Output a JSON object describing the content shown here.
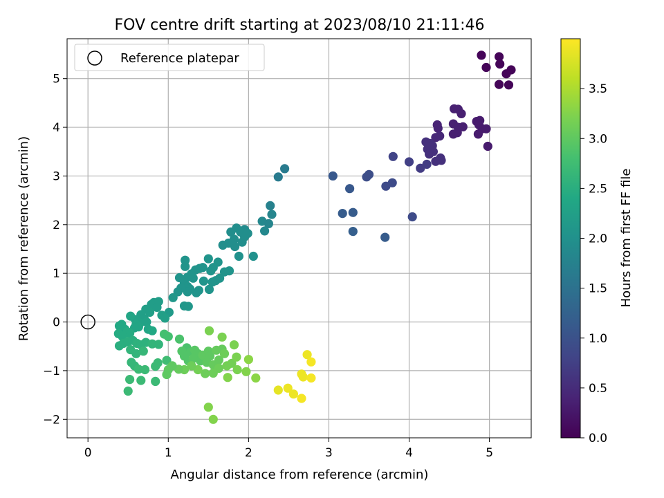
{
  "chart_data": {
    "type": "scatter",
    "title": "FOV centre drift starting at 2023/08/10 21:11:46",
    "xlabel": "Angular distance from reference (arcmin)",
    "ylabel": "Rotation from reference (arcmin)",
    "xlim": [
      -0.26,
      5.52
    ],
    "ylim": [
      -2.38,
      5.82
    ],
    "xticks": [
      0,
      1,
      2,
      3,
      4,
      5
    ],
    "yticks": [
      -2,
      -1,
      0,
      1,
      2,
      3,
      4,
      5
    ],
    "grid": true,
    "legend": {
      "placement": "top-left",
      "entries": [
        "Reference platepar"
      ]
    },
    "reference_point": {
      "x": 0,
      "y": 0
    },
    "colorbar": {
      "label": "Hours from first FF file",
      "colormap": "viridis",
      "range": [
        0,
        4.0
      ],
      "ticks": [
        0.0,
        0.5,
        1.0,
        1.5,
        2.0,
        2.5,
        3.0,
        3.5
      ]
    },
    "points": [
      [
        4.9,
        5.48,
        0.05
      ],
      [
        5.12,
        5.45,
        0.05
      ],
      [
        5.13,
        5.3,
        0.05
      ],
      [
        4.96,
        5.23,
        0.05
      ],
      [
        5.27,
        5.18,
        0.05
      ],
      [
        5.21,
        5.1,
        0.05
      ],
      [
        5.12,
        4.88,
        0.05
      ],
      [
        5.24,
        4.87,
        0.05
      ],
      [
        4.56,
        4.38,
        0.35
      ],
      [
        4.61,
        4.37,
        0.35
      ],
      [
        4.65,
        4.28,
        0.35
      ],
      [
        4.35,
        4.05,
        0.4
      ],
      [
        4.36,
        3.98,
        0.4
      ],
      [
        4.55,
        4.07,
        0.35
      ],
      [
        4.67,
        4.01,
        0.35
      ],
      [
        4.61,
        4.0,
        0.35
      ],
      [
        4.84,
        4.12,
        0.3
      ],
      [
        4.88,
        4.14,
        0.3
      ],
      [
        4.87,
        4.05,
        0.3
      ],
      [
        4.91,
        3.97,
        0.3
      ],
      [
        4.96,
        3.97,
        0.3
      ],
      [
        4.55,
        3.86,
        0.35
      ],
      [
        4.6,
        3.89,
        0.35
      ],
      [
        4.86,
        3.86,
        0.3
      ],
      [
        4.38,
        3.82,
        0.45
      ],
      [
        4.33,
        3.79,
        0.45
      ],
      [
        4.98,
        3.61,
        0.3
      ],
      [
        4.21,
        3.7,
        0.55
      ],
      [
        4.26,
        3.67,
        0.55
      ],
      [
        4.29,
        3.62,
        0.55
      ],
      [
        4.23,
        3.55,
        0.55
      ],
      [
        4.27,
        3.52,
        0.55
      ],
      [
        4.3,
        3.5,
        0.55
      ],
      [
        4.25,
        3.45,
        0.55
      ],
      [
        4.39,
        3.37,
        0.55
      ],
      [
        4.4,
        3.32,
        0.55
      ],
      [
        4.33,
        3.3,
        0.55
      ],
      [
        4.22,
        3.24,
        0.7
      ],
      [
        4.14,
        3.16,
        0.7
      ],
      [
        4.0,
        3.29,
        0.75
      ],
      [
        3.8,
        3.4,
        0.8
      ],
      [
        3.79,
        2.86,
        0.9
      ],
      [
        3.71,
        2.79,
        0.9
      ],
      [
        3.5,
        3.03,
        0.95
      ],
      [
        3.47,
        2.98,
        0.95
      ],
      [
        3.05,
        3.0,
        1.1
      ],
      [
        3.26,
        2.74,
        1.1
      ],
      [
        3.17,
        2.23,
        1.15
      ],
      [
        3.3,
        2.25,
        1.15
      ],
      [
        3.3,
        1.86,
        1.2
      ],
      [
        3.7,
        1.74,
        1.15
      ],
      [
        4.04,
        2.16,
        0.9
      ],
      [
        2.45,
        3.15,
        1.65
      ],
      [
        2.37,
        2.98,
        1.65
      ],
      [
        2.27,
        2.39,
        1.75
      ],
      [
        2.29,
        2.21,
        1.8
      ],
      [
        2.17,
        2.07,
        1.85
      ],
      [
        2.25,
        2.02,
        1.8
      ],
      [
        2.2,
        1.87,
        1.85
      ],
      [
        1.95,
        1.9,
        1.9
      ],
      [
        1.85,
        1.93,
        1.95
      ],
      [
        1.9,
        1.85,
        1.95
      ],
      [
        1.99,
        1.82,
        1.95
      ],
      [
        1.78,
        1.85,
        1.95
      ],
      [
        1.95,
        1.75,
        1.95
      ],
      [
        1.82,
        1.7,
        1.95
      ],
      [
        1.92,
        1.64,
        1.95
      ],
      [
        1.83,
        1.55,
        1.95
      ],
      [
        1.75,
        1.62,
        1.95
      ],
      [
        1.68,
        1.58,
        1.95
      ],
      [
        2.06,
        1.35,
        2.0
      ],
      [
        1.88,
        1.35,
        2.0
      ],
      [
        1.76,
        1.05,
        2.05
      ],
      [
        1.7,
        1.03,
        2.05
      ],
      [
        1.62,
        1.23,
        2.05
      ],
      [
        1.5,
        1.3,
        2.05
      ],
      [
        1.56,
        1.12,
        2.05
      ],
      [
        1.53,
        1.05,
        2.05
      ],
      [
        1.43,
        1.12,
        2.05
      ],
      [
        1.39,
        1.1,
        2.05
      ],
      [
        1.34,
        1.07,
        2.05
      ],
      [
        1.29,
        0.99,
        2.05
      ],
      [
        1.24,
        0.92,
        2.05
      ],
      [
        1.31,
        0.9,
        2.05
      ],
      [
        1.21,
        1.27,
        2.05
      ],
      [
        1.21,
        1.14,
        2.05
      ],
      [
        1.14,
        0.91,
        2.05
      ],
      [
        1.2,
        0.8,
        2.05
      ],
      [
        1.24,
        0.73,
        2.05
      ],
      [
        1.27,
        0.68,
        2.05
      ],
      [
        1.38,
        0.65,
        2.05
      ],
      [
        1.51,
        0.67,
        2.05
      ],
      [
        1.64,
        0.9,
        2.05
      ],
      [
        1.59,
        0.85,
        2.05
      ],
      [
        1.55,
        0.82,
        2.05
      ],
      [
        1.44,
        0.84,
        2.05
      ],
      [
        1.35,
        0.6,
        2.05
      ],
      [
        1.24,
        0.62,
        2.05
      ],
      [
        1.16,
        0.7,
        2.05
      ],
      [
        1.12,
        0.62,
        2.05
      ],
      [
        1.06,
        0.5,
        2.1
      ],
      [
        1.2,
        0.33,
        2.1
      ],
      [
        1.25,
        0.32,
        2.1
      ],
      [
        1.01,
        0.2,
        2.15
      ],
      [
        0.88,
        0.42,
        2.2
      ],
      [
        0.82,
        0.4,
        2.2
      ],
      [
        0.79,
        0.36,
        2.2
      ],
      [
        0.86,
        0.3,
        2.2
      ],
      [
        0.72,
        0.26,
        2.25
      ],
      [
        0.77,
        0.2,
        2.25
      ],
      [
        0.92,
        0.14,
        2.25
      ],
      [
        0.96,
        0.08,
        2.25
      ],
      [
        0.66,
        0.15,
        2.25
      ],
      [
        0.7,
        0.07,
        2.25
      ],
      [
        0.73,
        0.0,
        2.3
      ],
      [
        0.65,
        -0.02,
        2.3
      ],
      [
        0.59,
        0.05,
        2.3
      ],
      [
        0.53,
        0.12,
        2.35
      ],
      [
        0.6,
        -0.05,
        2.35
      ],
      [
        0.63,
        -0.1,
        2.35
      ],
      [
        0.58,
        -0.12,
        2.35
      ],
      [
        0.75,
        -0.15,
        2.35
      ],
      [
        0.8,
        -0.18,
        2.4
      ],
      [
        0.39,
        -0.08,
        2.4
      ],
      [
        0.42,
        -0.05,
        2.4
      ],
      [
        0.46,
        -0.15,
        2.4
      ],
      [
        0.49,
        -0.2,
        2.45
      ],
      [
        0.52,
        -0.23,
        2.45
      ],
      [
        0.38,
        -0.24,
        2.45
      ],
      [
        0.43,
        -0.3,
        2.45
      ],
      [
        0.44,
        -0.44,
        2.5
      ],
      [
        0.39,
        -0.49,
        2.5
      ],
      [
        0.5,
        -0.4,
        2.5
      ],
      [
        0.56,
        -0.38,
        2.5
      ],
      [
        0.61,
        -0.44,
        2.55
      ],
      [
        0.66,
        -0.47,
        2.55
      ],
      [
        0.72,
        -0.42,
        2.55
      ],
      [
        0.8,
        -0.45,
        2.6
      ],
      [
        0.88,
        -0.46,
        2.6
      ],
      [
        0.53,
        -0.57,
        2.6
      ],
      [
        0.6,
        -0.65,
        2.6
      ],
      [
        0.69,
        -0.6,
        2.65
      ],
      [
        0.54,
        -0.83,
        2.65
      ],
      [
        0.58,
        -0.9,
        2.65
      ],
      [
        0.63,
        -0.97,
        2.7
      ],
      [
        0.71,
        -0.98,
        2.7
      ],
      [
        0.84,
        -0.91,
        2.7
      ],
      [
        0.87,
        -0.84,
        2.7
      ],
      [
        0.98,
        -0.79,
        2.75
      ],
      [
        0.52,
        -1.18,
        2.7
      ],
      [
        0.66,
        -1.2,
        2.7
      ],
      [
        0.84,
        -1.22,
        2.7
      ],
      [
        0.5,
        -1.42,
        2.7
      ],
      [
        0.95,
        -0.25,
        2.8
      ],
      [
        1.0,
        -0.3,
        2.8
      ],
      [
        1.14,
        -0.35,
        2.85
      ],
      [
        1.23,
        -0.53,
        2.85
      ],
      [
        1.28,
        -0.62,
        2.9
      ],
      [
        1.17,
        -0.6,
        2.9
      ],
      [
        1.2,
        -0.7,
        2.9
      ],
      [
        1.25,
        -0.8,
        2.9
      ],
      [
        1.33,
        -0.58,
        2.95
      ],
      [
        1.37,
        -0.65,
        2.95
      ],
      [
        1.31,
        -0.75,
        2.95
      ],
      [
        1.4,
        -0.8,
        2.95
      ],
      [
        1.43,
        -0.68,
        3.0
      ],
      [
        1.5,
        -0.6,
        3.0
      ],
      [
        1.52,
        -0.7,
        3.0
      ],
      [
        1.48,
        -0.83,
        3.0
      ],
      [
        1.56,
        -0.88,
        3.05
      ],
      [
        1.63,
        -0.78,
        3.05
      ],
      [
        1.6,
        -0.58,
        3.05
      ],
      [
        1.67,
        -0.56,
        3.05
      ],
      [
        1.7,
        -0.65,
        3.1
      ],
      [
        1.63,
        -0.95,
        3.1
      ],
      [
        1.56,
        -1.05,
        3.1
      ],
      [
        1.46,
        -1.06,
        3.1
      ],
      [
        1.37,
        -0.98,
        3.15
      ],
      [
        1.29,
        -0.9,
        3.1
      ],
      [
        1.2,
        -0.98,
        3.1
      ],
      [
        1.13,
        -0.97,
        3.05
      ],
      [
        1.05,
        -0.9,
        3.0
      ],
      [
        1.0,
        -0.98,
        3.0
      ],
      [
        0.98,
        -1.08,
        3.0
      ],
      [
        1.73,
        -0.9,
        3.15
      ],
      [
        1.79,
        -0.85,
        3.15
      ],
      [
        1.86,
        -0.98,
        3.2
      ],
      [
        1.85,
        -0.72,
        3.2
      ],
      [
        1.82,
        -0.47,
        3.2
      ],
      [
        1.67,
        -0.31,
        3.2
      ],
      [
        1.51,
        -0.18,
        3.2
      ],
      [
        1.97,
        -1.02,
        3.25
      ],
      [
        2.09,
        -1.15,
        3.3
      ],
      [
        1.74,
        -1.14,
        3.25
      ],
      [
        1.5,
        -1.75,
        3.25
      ],
      [
        1.56,
        -2.0,
        3.25
      ],
      [
        2.0,
        -0.77,
        3.3
      ],
      [
        2.37,
        -1.4,
        3.85
      ],
      [
        2.49,
        -1.36,
        3.9
      ],
      [
        2.56,
        -1.48,
        3.9
      ],
      [
        2.66,
        -1.07,
        3.9
      ],
      [
        2.68,
        -1.13,
        3.9
      ],
      [
        2.66,
        -1.57,
        3.95
      ],
      [
        2.73,
        -0.67,
        3.9
      ],
      [
        2.78,
        -0.82,
        3.95
      ],
      [
        2.78,
        -1.15,
        3.95
      ]
    ]
  }
}
